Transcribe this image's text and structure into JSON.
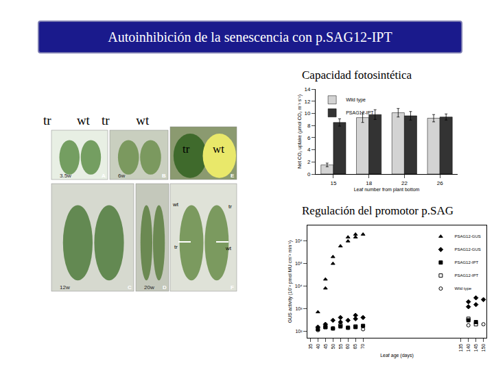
{
  "slide": {
    "title": "Autoinhibición de la senescencia con p.SAG12-IPT",
    "photos": [
      {
        "letter": "A",
        "age": "3.5w",
        "labels_above": [
          "tr",
          "wt"
        ]
      },
      {
        "letter": "B",
        "age": "6w",
        "labels_above": [
          "tr",
          "wt"
        ]
      },
      {
        "letter": "E",
        "labels": [
          "tr",
          "wt"
        ]
      },
      {
        "letter": "C",
        "age": "12w"
      },
      {
        "letter": "D",
        "age": "20w"
      },
      {
        "letter": "F",
        "labels": [
          "wt",
          "tr",
          "tr",
          "wt"
        ]
      }
    ]
  },
  "chart_data": [
    {
      "type": "bar",
      "title": "Capacidad fotosintética",
      "xlabel": "Leaf number from plant bottom",
      "ylabel": "Net CO₂ uptake (µmol CO₂ m⁻² s⁻¹)",
      "categories": [
        "15",
        "18",
        "22",
        "26"
      ],
      "series": [
        {
          "name": "Wild type",
          "color": "#d3d3d3",
          "values": [
            1.5,
            9.3,
            10.1,
            9.2
          ],
          "error": [
            0.3,
            0.8,
            0.7,
            0.6
          ]
        },
        {
          "name": "PSAG12-IPT",
          "color": "#333333",
          "values": [
            8.5,
            9.8,
            9.6,
            9.4
          ],
          "error": [
            0.6,
            0.8,
            0.7,
            0.5
          ]
        }
      ],
      "ylim": [
        0,
        14
      ],
      "yticks": [
        0,
        2,
        4,
        6,
        8,
        10,
        12,
        14
      ],
      "grid": false,
      "legend": "upper left"
    },
    {
      "type": "scatter",
      "title": "Regulación del promotor p.SAG",
      "xlabel": "Leaf age (days)",
      "ylabel": "GUS activity (10⁻² pmol MU cm⁻² min⁻¹)",
      "log": "y",
      "xlim": [
        33,
        152
      ],
      "xticks": [
        35,
        40,
        45,
        50,
        55,
        60,
        65,
        70,
        135,
        140,
        145,
        150
      ],
      "ylim": [
        50,
        5000000
      ],
      "yticks": [
        {
          "value": 100,
          "label": "10²"
        },
        {
          "value": 1000,
          "label": "10³"
        },
        {
          "value": 10000,
          "label": "10⁴"
        },
        {
          "value": 100000,
          "label": "10⁵"
        },
        {
          "value": 1000000,
          "label": "10⁶"
        }
      ],
      "series": [
        {
          "name": "PSAG12-GUS",
          "color": "#000000",
          "marker": "triangle-up",
          "x": [
            40,
            45,
            45,
            50,
            50,
            55,
            60,
            60,
            65,
            65,
            70
          ],
          "values": [
            700,
            20000,
            8000,
            200000,
            100000,
            600000,
            1500000,
            1000000,
            2000000,
            1500000,
            2000000
          ]
        },
        {
          "name": "PSAG12-GUS",
          "color": "#000000",
          "marker": "diamond",
          "x": [
            40,
            45,
            50,
            55,
            55,
            60,
            65,
            65,
            70,
            140,
            140,
            145,
            145,
            150
          ],
          "values": [
            150,
            200,
            300,
            250,
            400,
            300,
            500,
            350,
            400,
            2000,
            1200,
            3000,
            1500,
            2500
          ]
        },
        {
          "name": "PSAG12-IPT",
          "color": "#000000",
          "marker": "square",
          "x": [
            40,
            45,
            50,
            55,
            60,
            65,
            70,
            140,
            145
          ],
          "values": [
            120,
            150,
            130,
            160,
            140,
            150,
            170,
            300,
            250
          ]
        },
        {
          "name": "PSAG12-IPT",
          "color": "#000000",
          "marker": "square-open",
          "x": [
            45,
            55,
            65,
            140,
            145
          ],
          "values": [
            150,
            180,
            160,
            350,
            200
          ]
        },
        {
          "name": "Wild type",
          "color": "#000000",
          "marker": "circle-open",
          "x": [
            40,
            50,
            60,
            70,
            140,
            150
          ],
          "values": [
            110,
            130,
            140,
            120,
            180,
            200
          ]
        }
      ],
      "grid": false,
      "legend": "upper right"
    }
  ]
}
